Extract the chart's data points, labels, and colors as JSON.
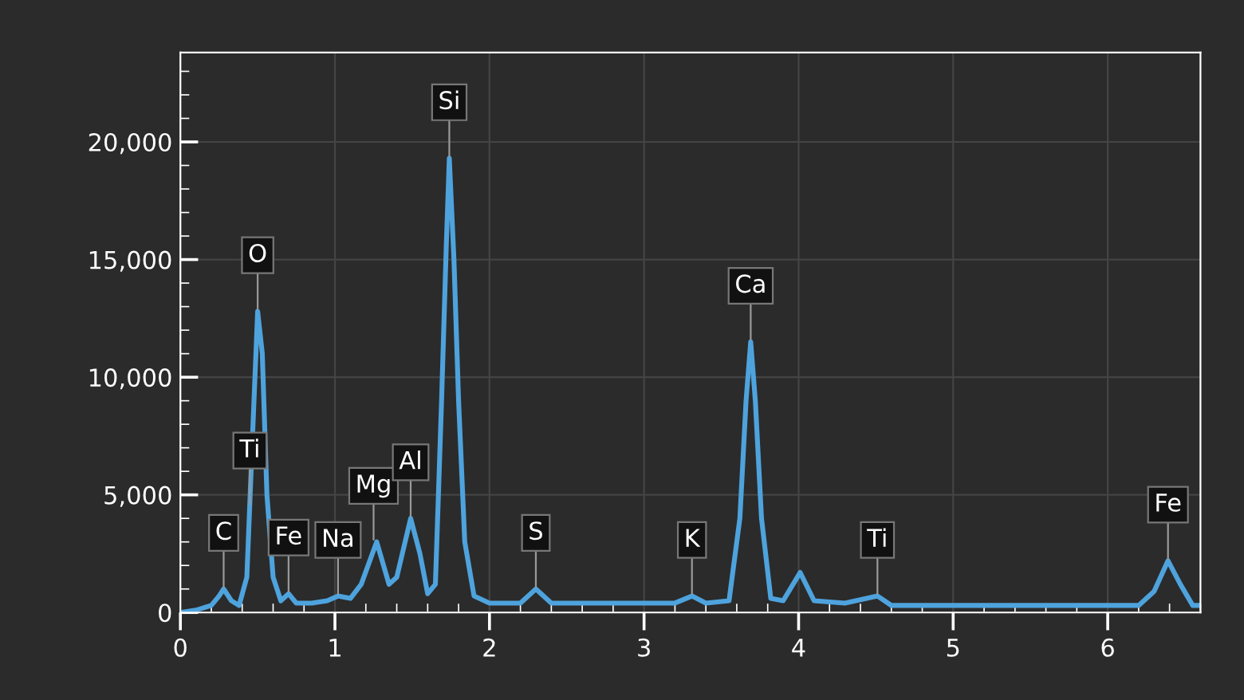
{
  "chart_data": {
    "type": "line",
    "x": [
      0,
      0.1,
      0.2,
      0.25,
      0.28,
      0.33,
      0.38,
      0.43,
      0.47,
      0.5,
      0.53,
      0.56,
      0.6,
      0.65,
      0.7,
      0.75,
      0.85,
      0.95,
      1.02,
      1.1,
      1.17,
      1.27,
      1.35,
      1.4,
      1.49,
      1.55,
      1.6,
      1.65,
      1.69,
      1.72,
      1.74,
      1.77,
      1.8,
      1.84,
      1.9,
      2.0,
      2.2,
      2.3,
      2.4,
      2.6,
      3.0,
      3.2,
      3.31,
      3.4,
      3.55,
      3.62,
      3.66,
      3.69,
      3.72,
      3.76,
      3.82,
      3.9,
      4.01,
      4.1,
      4.3,
      4.51,
      4.6,
      5.0,
      6.2,
      6.3,
      6.39,
      6.47,
      6.55,
      6.6
    ],
    "series": [
      {
        "color": "#4ea3dd",
        "values": [
          0,
          100,
          300,
          700,
          1000,
          500,
          300,
          1500,
          8000,
          12800,
          11000,
          5000,
          1500,
          500,
          800,
          400,
          400,
          500,
          700,
          600,
          1200,
          3000,
          1200,
          1500,
          4000,
          2500,
          800,
          1200,
          9000,
          15500,
          19300,
          15000,
          9000,
          3000,
          700,
          400,
          400,
          1000,
          400,
          400,
          400,
          400,
          700,
          400,
          500,
          4000,
          9000,
          11500,
          9000,
          4000,
          600,
          500,
          1700,
          500,
          400,
          700,
          300,
          300,
          300,
          900,
          2200,
          1200,
          300,
          300
        ]
      }
    ],
    "xlim": [
      0,
      6.6
    ],
    "xticks": [
      0,
      1,
      2,
      3,
      4,
      5,
      6
    ],
    "ylim": [
      0,
      23800
    ],
    "yticks": [
      {
        "value": 0,
        "label": "0"
      },
      {
        "value": 5000,
        "label": "5,000"
      },
      {
        "value": 10000,
        "label": "10,000"
      },
      {
        "value": 15000,
        "label": "15,000"
      },
      {
        "value": 20000,
        "label": "20,000"
      }
    ],
    "grid": true,
    "marker": "none",
    "line_style": "solid",
    "annotations": [
      {
        "text": "C",
        "x": 0.28,
        "y": 1000
      },
      {
        "text": "O",
        "x": 0.5,
        "y": 12800
      },
      {
        "text": "Ti",
        "x": 0.45,
        "y": 4500
      },
      {
        "text": "Fe",
        "x": 0.7,
        "y": 800
      },
      {
        "text": "Na",
        "x": 1.02,
        "y": 700
      },
      {
        "text": "Mg",
        "x": 1.25,
        "y": 3000
      },
      {
        "text": "Al",
        "x": 1.49,
        "y": 4000
      },
      {
        "text": "Si",
        "x": 1.74,
        "y": 19300
      },
      {
        "text": "S",
        "x": 2.3,
        "y": 1000
      },
      {
        "text": "K",
        "x": 3.31,
        "y": 700
      },
      {
        "text": "Ca",
        "x": 3.69,
        "y": 11500
      },
      {
        "text": "Ti",
        "x": 4.51,
        "y": 700
      },
      {
        "text": "Fe",
        "x": 6.39,
        "y": 2200
      }
    ]
  }
}
